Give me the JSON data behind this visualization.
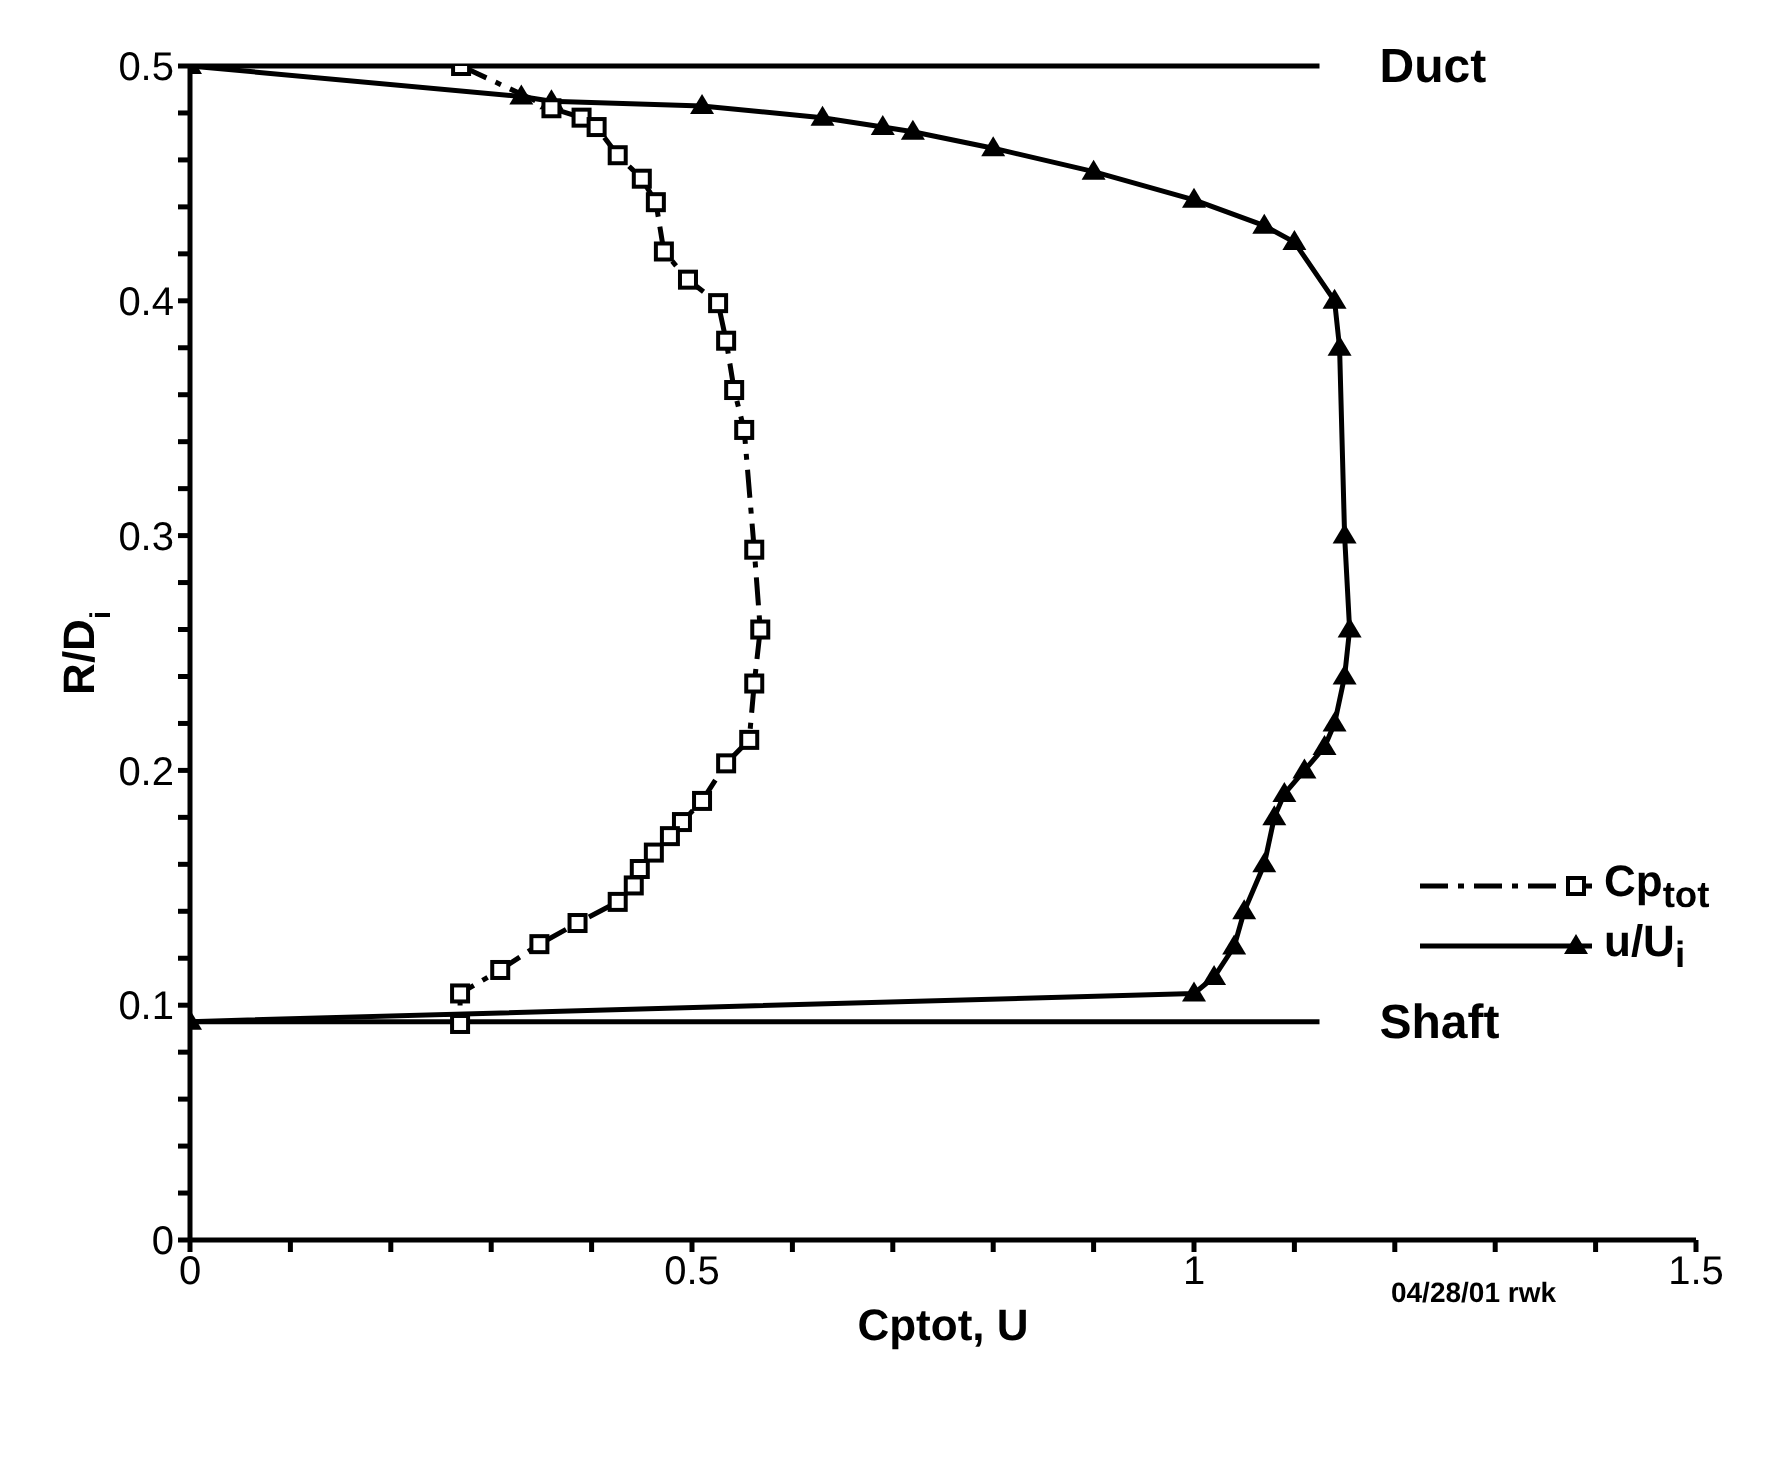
{
  "chart_data": {
    "type": "line",
    "xlabel": "Cptot, U",
    "ylabel": "R/D$_{i}$",
    "xlim": [
      0,
      1.5
    ],
    "ylim": [
      0,
      0.5
    ],
    "xticks": [
      0,
      {
        "value": 0.1,
        "label": null
      },
      {
        "value": 0.2,
        "label": null
      },
      {
        "value": 0.3,
        "label": null
      },
      {
        "value": 0.4,
        "label": null
      },
      0.5,
      {
        "value": 0.6,
        "label": null
      },
      {
        "value": 0.7,
        "label": null
      },
      {
        "value": 0.8,
        "label": null
      },
      {
        "value": 0.9,
        "label": null
      },
      1,
      {
        "value": 1.1,
        "label": null
      },
      {
        "value": 1.2,
        "label": null
      },
      {
        "value": 1.3,
        "label": null
      },
      {
        "value": 1.4,
        "label": null
      },
      1.5
    ],
    "yticks": [
      0,
      {
        "value": 0.02,
        "label": null
      },
      {
        "value": 0.04,
        "label": null
      },
      {
        "value": 0.06,
        "label": null
      },
      {
        "value": 0.08,
        "label": null
      },
      0.1,
      {
        "value": 0.12,
        "label": null
      },
      {
        "value": 0.14,
        "label": null
      },
      {
        "value": 0.16,
        "label": null
      },
      {
        "value": 0.18,
        "label": null
      },
      0.2,
      {
        "value": 0.22,
        "label": null
      },
      {
        "value": 0.24,
        "label": null
      },
      {
        "value": 0.26,
        "label": null
      },
      {
        "value": 0.28,
        "label": null
      },
      0.3,
      {
        "value": 0.32,
        "label": null
      },
      {
        "value": 0.34,
        "label": null
      },
      {
        "value": 0.36,
        "label": null
      },
      {
        "value": 0.38,
        "label": null
      },
      0.4,
      {
        "value": 0.42,
        "label": null
      },
      {
        "value": 0.44,
        "label": null
      },
      {
        "value": 0.46,
        "label": null
      },
      {
        "value": 0.48,
        "label": null
      },
      0.5
    ],
    "grid": false,
    "legend": "right",
    "series": [
      {
        "name": "Cp$_{tot}$",
        "color": "#000000",
        "marker": "square",
        "line_style": "dashed",
        "x": [
          0.27,
          0.36,
          0.39,
          0.405,
          0.426,
          0.45,
          0.464,
          0.472,
          0.496,
          0.526,
          0.534,
          0.542,
          0.552,
          0.562,
          0.568,
          0.562,
          0.557,
          0.534,
          0.51,
          0.49,
          0.478,
          0.462,
          0.448,
          0.442,
          0.426,
          0.386,
          0.348,
          0.309,
          0.269,
          0.269
        ],
        "values": [
          0.5,
          0.482,
          0.478,
          0.474,
          0.462,
          0.452,
          0.442,
          0.421,
          0.409,
          0.399,
          0.383,
          0.362,
          0.345,
          0.294,
          0.26,
          0.237,
          0.213,
          0.203,
          0.187,
          0.178,
          0.172,
          0.165,
          0.158,
          0.151,
          0.144,
          0.135,
          0.126,
          0.115,
          0.105,
          0.092
        ]
      },
      {
        "name": "u/U$_{i}$",
        "color": "#000000",
        "marker": "triangle",
        "line_style": "solid",
        "x": [
          0,
          0.33,
          0.36,
          0.51,
          0.63,
          0.69,
          0.72,
          0.8,
          0.9,
          1.0,
          1.07,
          1.1,
          1.14,
          1.145,
          1.15,
          1.155,
          1.15,
          1.14,
          1.13,
          1.11,
          1.09,
          1.08,
          1.07,
          1.05,
          1.04,
          1.02,
          1.0,
          0
        ],
        "values": [
          0.5,
          0.487,
          0.485,
          0.483,
          0.478,
          0.474,
          0.472,
          0.465,
          0.455,
          0.443,
          0.432,
          0.425,
          0.4,
          0.38,
          0.3,
          0.26,
          0.24,
          0.22,
          0.21,
          0.2,
          0.19,
          0.18,
          0.16,
          0.14,
          0.125,
          0.112,
          0.105,
          0.093
        ]
      }
    ],
    "ref_lines": [
      {
        "axis": "y",
        "value": 0.5,
        "label": "Duct",
        "color": "#000000"
      },
      {
        "axis": "y",
        "value": 0.093,
        "label": "Shaft",
        "color": "#000000"
      }
    ],
    "annotations": [
      "04/28/01 rwk"
    ]
  }
}
